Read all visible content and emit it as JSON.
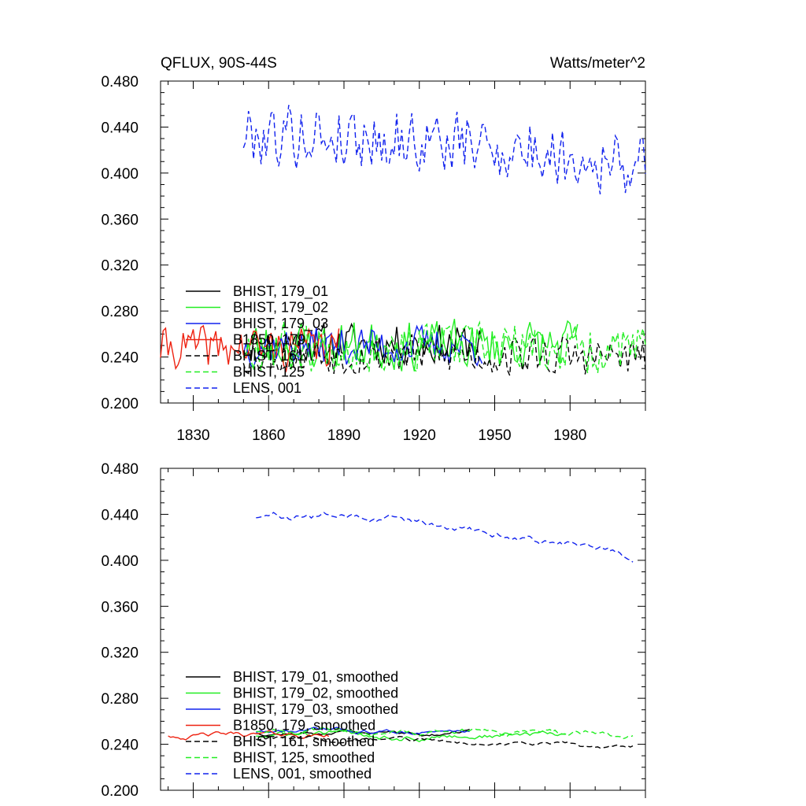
{
  "header": {
    "title": "QFLUX, 90S-44S",
    "units": "Watts/meter^2"
  },
  "chart_data": [
    {
      "type": "line",
      "panel": "raw",
      "title": "QFLUX, 90S-44S",
      "units": "Watts/meter^2",
      "xlim": [
        1817,
        2010
      ],
      "ylim": [
        0.2,
        0.48
      ],
      "xticks": [
        1830,
        1860,
        1890,
        1920,
        1950,
        1980
      ],
      "yticks": [
        0.2,
        0.24,
        0.28,
        0.32,
        0.36,
        0.4,
        0.44,
        0.48
      ],
      "ytick_labels": [
        "0.200",
        "0.240",
        "0.280",
        "0.320",
        "0.360",
        "0.400",
        "0.440",
        "0.480"
      ],
      "xtick_labels": [
        "1830",
        "1860",
        "1890",
        "1920",
        "1950",
        "1980"
      ],
      "series": [
        {
          "name": "BHIST, 179_01",
          "color": "#000000",
          "dash": "solid",
          "x_start": 1850,
          "x_end": 1945,
          "base": 0.252,
          "amp": 0.016,
          "trend": 0.0,
          "seed": 11
        },
        {
          "name": "BHIST, 179_02",
          "color": "#22ee22",
          "dash": "solid",
          "x_start": 1850,
          "x_end": 1983,
          "base": 0.25,
          "amp": 0.02,
          "trend": 0.0,
          "seed": 23
        },
        {
          "name": "BHIST, 179_03",
          "color": "#1122ee",
          "dash": "solid",
          "x_start": 1850,
          "x_end": 1945,
          "base": 0.25,
          "amp": 0.016,
          "trend": 0.0,
          "seed": 37
        },
        {
          "name": "B1850, 179",
          "color": "#ee2211",
          "dash": "solid",
          "x_start": 1817,
          "x_end": 1888,
          "base": 0.248,
          "amp": 0.017,
          "trend": 0.0,
          "seed": 41
        },
        {
          "name": "BHIST, 161",
          "color": "#000000",
          "dash": "dashed",
          "x_start": 1850,
          "x_end": 2010,
          "base": 0.243,
          "amp": 0.017,
          "trend": -0.004,
          "seed": 53
        },
        {
          "name": "BHIST, 125",
          "color": "#22ee22",
          "dash": "dashed",
          "x_start": 1850,
          "x_end": 2010,
          "base": 0.25,
          "amp": 0.02,
          "trend": -0.004,
          "seed": 67
        },
        {
          "name": "LENS, 001",
          "color": "#1122ee",
          "dash": "dashed",
          "x_start": 1850,
          "x_end": 2010,
          "base": 0.434,
          "amp": 0.026,
          "trend": -0.03,
          "seed": 79
        }
      ]
    },
    {
      "type": "line",
      "panel": "smoothed",
      "xlim": [
        1817,
        2010
      ],
      "ylim": [
        0.2,
        0.48
      ],
      "xticks": [
        1830,
        1860,
        1890,
        1920,
        1950,
        1980
      ],
      "yticks": [
        0.2,
        0.24,
        0.28,
        0.32,
        0.36,
        0.4,
        0.44,
        0.48
      ],
      "ytick_labels": [
        "0.200",
        "0.240",
        "0.280",
        "0.320",
        "0.360",
        "0.400",
        "0.440",
        "0.480"
      ],
      "series": [
        {
          "name": "BHIST, 179_01, smoothed",
          "color": "#000000",
          "dash": "solid",
          "x_start": 1855,
          "x_end": 1940,
          "base": 0.25,
          "amp": 0.004,
          "trend": 0.0,
          "seed": 12
        },
        {
          "name": "BHIST, 179_02, smoothed",
          "color": "#22ee22",
          "dash": "solid",
          "x_start": 1855,
          "x_end": 1978,
          "base": 0.248,
          "amp": 0.006,
          "trend": 0.0,
          "seed": 24
        },
        {
          "name": "BHIST, 179_03, smoothed",
          "color": "#1122ee",
          "dash": "solid",
          "x_start": 1855,
          "x_end": 1940,
          "base": 0.251,
          "amp": 0.004,
          "trend": 0.0,
          "seed": 38
        },
        {
          "name": "B1850, 179, smoothed",
          "color": "#ee2211",
          "dash": "solid",
          "x_start": 1820,
          "x_end": 1884,
          "base": 0.248,
          "amp": 0.005,
          "trend": 0.0,
          "seed": 42
        },
        {
          "name": "BHIST, 161, smoothed",
          "color": "#000000",
          "dash": "dashed",
          "x_start": 1855,
          "x_end": 2005,
          "base": 0.245,
          "amp": 0.004,
          "trend": -0.008,
          "seed": 54
        },
        {
          "name": "BHIST, 125, smoothed",
          "color": "#22ee22",
          "dash": "dashed",
          "x_start": 1855,
          "x_end": 2005,
          "base": 0.252,
          "amp": 0.006,
          "trend": -0.006,
          "seed": 68
        },
        {
          "name": "LENS, 001, smoothed",
          "color": "#1122ee",
          "dash": "dashed",
          "x_start": 1855,
          "x_end": 2005,
          "base": 0.438,
          "amp": 0.007,
          "trend": -0.036,
          "seed": 80
        }
      ]
    }
  ]
}
